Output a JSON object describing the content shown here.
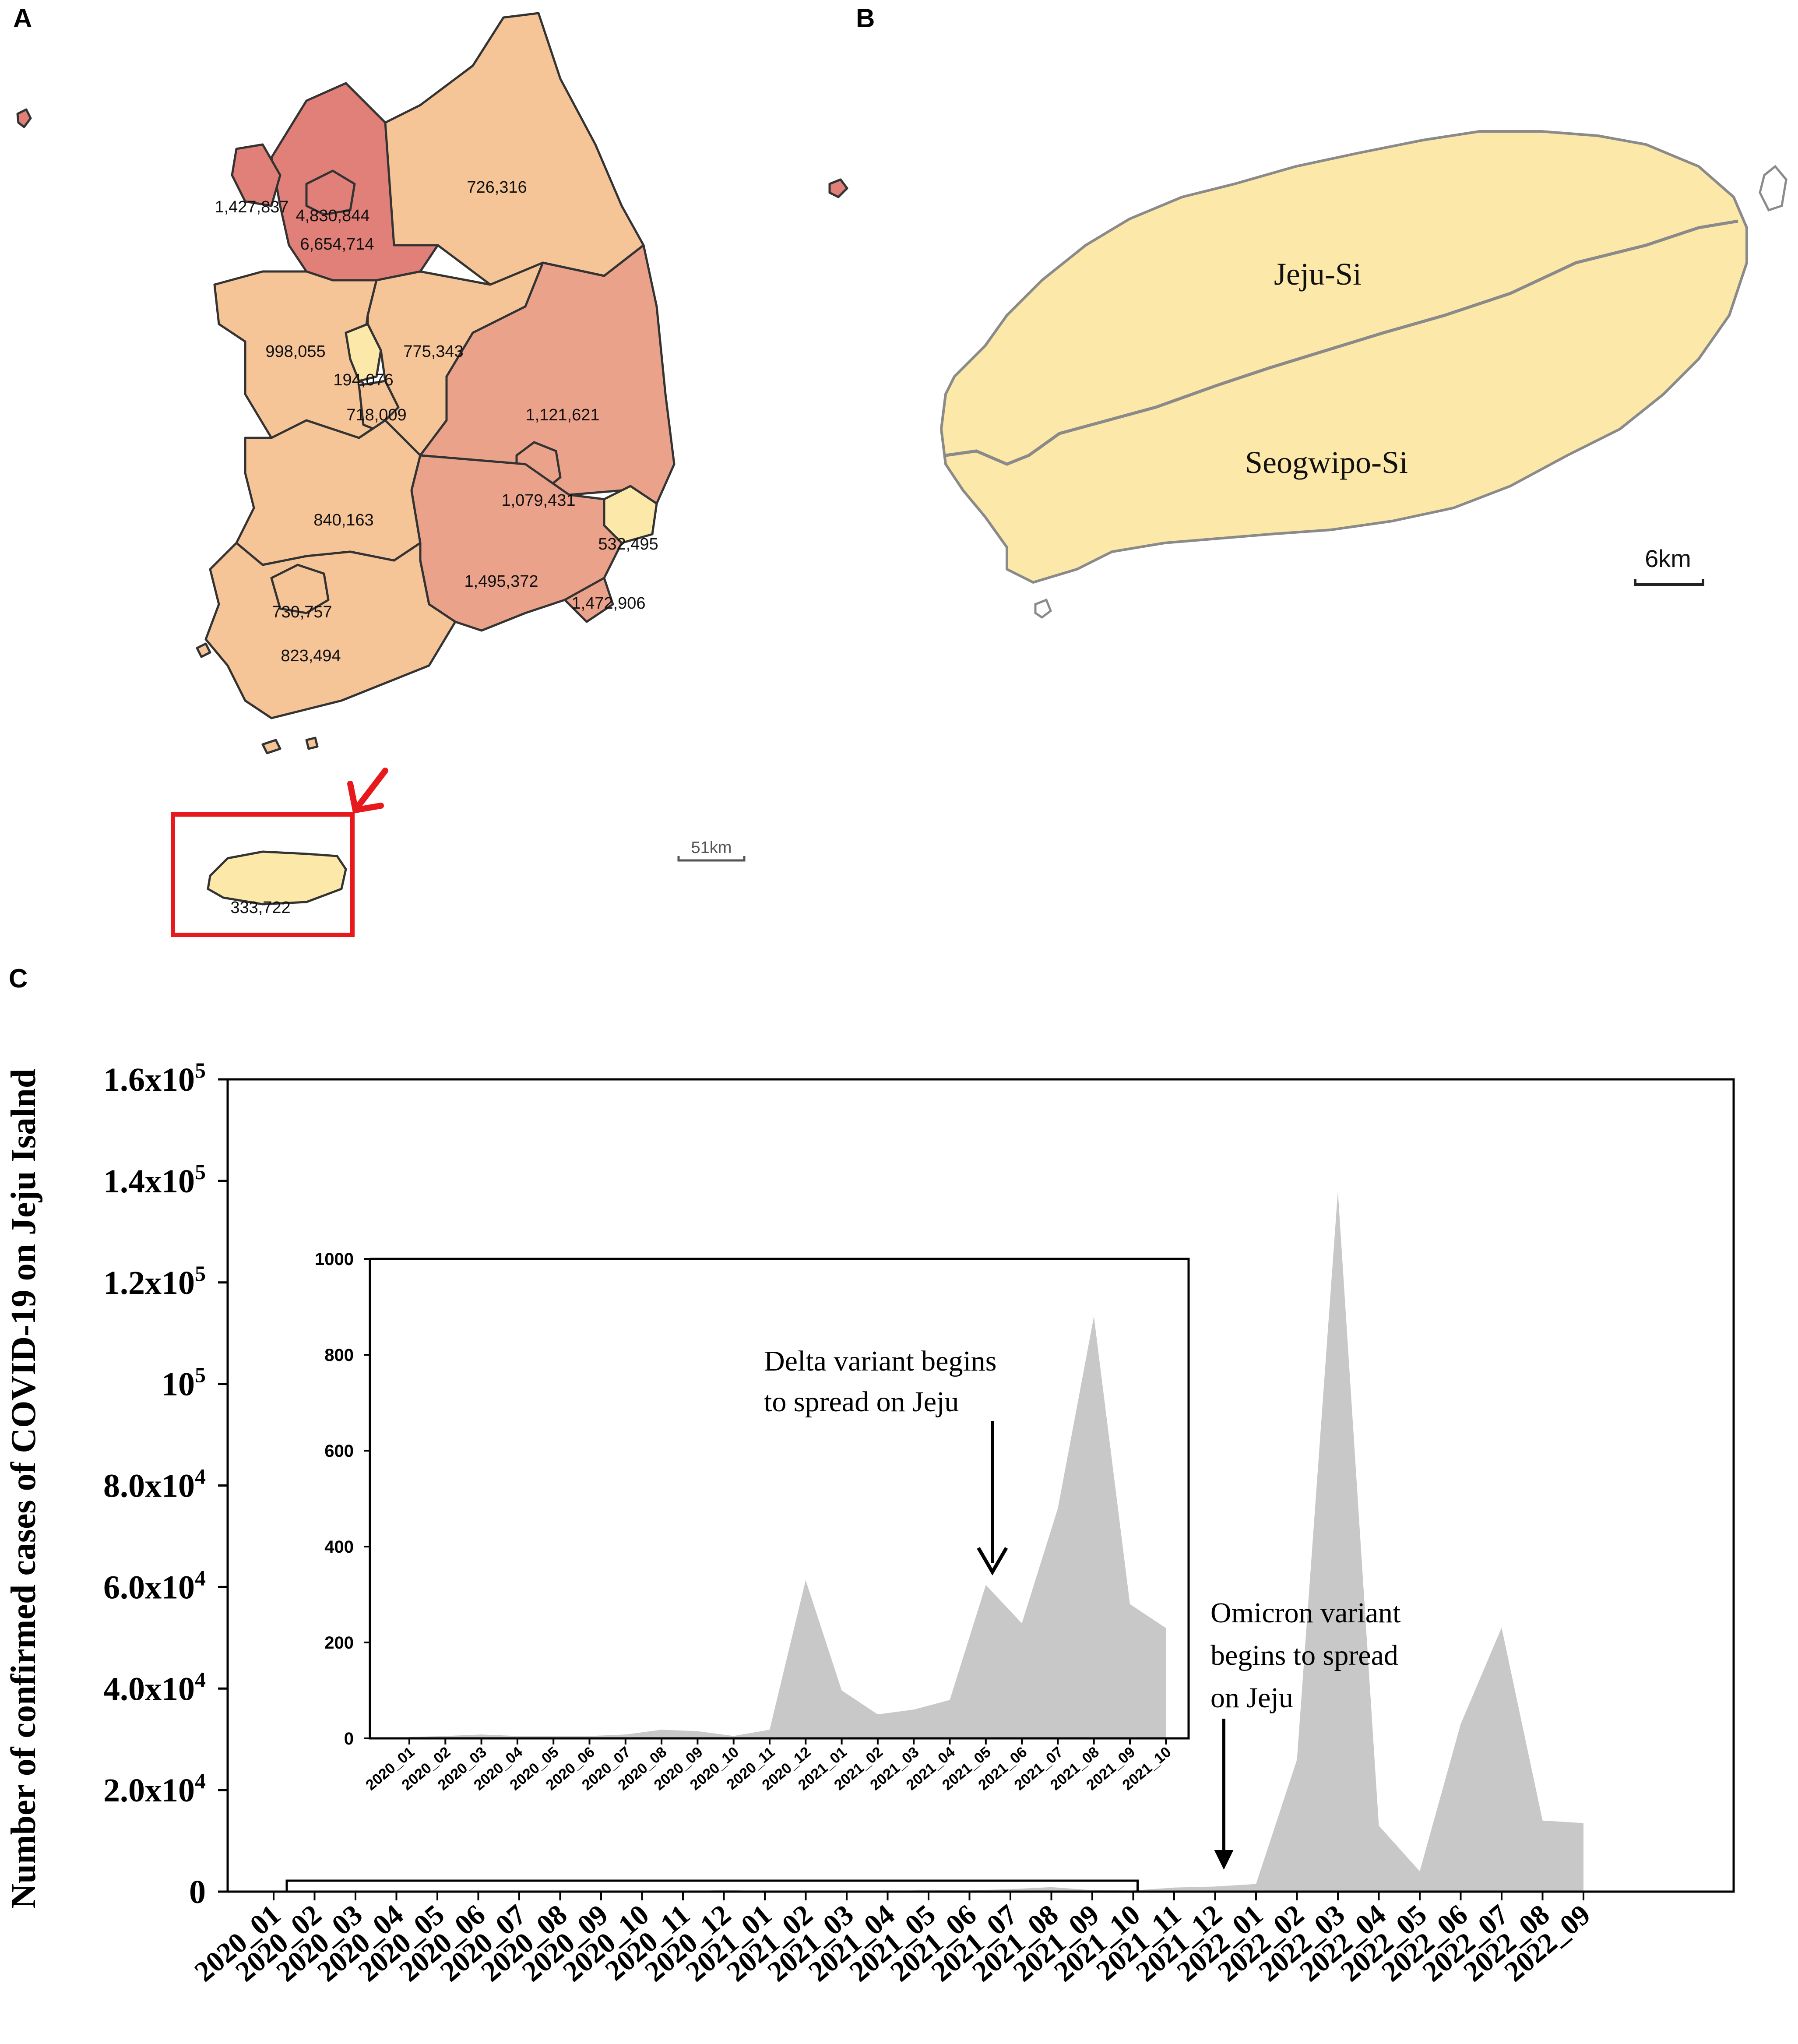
{
  "panels": {
    "a": "A",
    "b": "B",
    "c": "C"
  },
  "map_a": {
    "regions": [
      {
        "id": "gangwon",
        "value": "726,316"
      },
      {
        "id": "incheon",
        "value": "1,427,837"
      },
      {
        "id": "seoul",
        "value": "4,830,844"
      },
      {
        "id": "gyeonggi",
        "value": "6,654,714"
      },
      {
        "id": "chungnam",
        "value": "998,055"
      },
      {
        "id": "chungbuk",
        "value": "775,343"
      },
      {
        "id": "sejong",
        "value": "194,076"
      },
      {
        "id": "daejeon",
        "value": "718,009"
      },
      {
        "id": "gyeongbuk",
        "value": "1,121,621"
      },
      {
        "id": "daegu",
        "value": "1,079,431"
      },
      {
        "id": "ulsan",
        "value": "532,495"
      },
      {
        "id": "jeonbuk",
        "value": "840,163"
      },
      {
        "id": "gwangju",
        "value": "730,757"
      },
      {
        "id": "jeonnam",
        "value": "823,494"
      },
      {
        "id": "gyeongnam",
        "value": "1,495,372"
      },
      {
        "id": "busan",
        "value": "1,472,906"
      },
      {
        "id": "jeju",
        "value": "333,722"
      }
    ],
    "scale_label": "51km",
    "colors": {
      "low": "#fce8a8",
      "mid": "#f5c497",
      "high": "#eba28b",
      "highest": "#e08078",
      "highlight_box": "#e8191c",
      "outline": "#333333"
    }
  },
  "map_b": {
    "north_label": "Jeju-Si",
    "south_label": "Seogwipo-Si",
    "scale_label": "6km",
    "fill": "#fce8a8",
    "boundary": "#8a8a8a"
  },
  "chart_data": [
    {
      "type": "area",
      "id": "main",
      "ylabel": "Number of confirmed cases of COVID-19 on Jeju Isalnd",
      "yticks": [
        {
          "value": 0,
          "label": "0"
        },
        {
          "value": 20000,
          "label": "2.0x10",
          "exp": "4"
        },
        {
          "value": 40000,
          "label": "4.0x10",
          "exp": "4"
        },
        {
          "value": 60000,
          "label": "6.0x10",
          "exp": "4"
        },
        {
          "value": 80000,
          "label": "8.0x10",
          "exp": "4"
        },
        {
          "value": 100000,
          "label": "10",
          "exp": "5"
        },
        {
          "value": 120000,
          "label": "1.2x10",
          "exp": "5"
        },
        {
          "value": 140000,
          "label": "1.4x10",
          "exp": "5"
        },
        {
          "value": 160000,
          "label": "1.6x10",
          "exp": "5"
        }
      ],
      "ylim": [
        0,
        160000
      ],
      "categories": [
        "2020_01",
        "2020_02",
        "2020_03",
        "2020_04",
        "2020_05",
        "2020_06",
        "2020_07",
        "2020_08",
        "2020_09",
        "2020_10",
        "2020_11",
        "2020_12",
        "2021_01",
        "2021_02",
        "2021_03",
        "2021_04",
        "2021_05",
        "2021_06",
        "2021_07",
        "2021_08",
        "2021_09",
        "2021_10",
        "2021_11",
        "2021_12",
        "2022_01",
        "2022_02",
        "2022_03",
        "2022_04",
        "2022_05",
        "2022_06",
        "2022_07",
        "2022_08",
        "2022_09"
      ],
      "values": [
        5,
        3,
        8,
        4,
        5,
        5,
        10,
        20,
        15,
        5,
        20,
        330,
        100,
        50,
        60,
        80,
        320,
        240,
        480,
        880,
        280,
        230,
        800,
        1000,
        1500,
        26000,
        138000,
        13000,
        4000,
        33000,
        52000,
        14000,
        13500
      ],
      "bracket": {
        "from": "2020_01",
        "to": "2021_10"
      },
      "annotation": {
        "lines": [
          "Omicron variant",
          "begins to spread",
          "on Jeju"
        ],
        "target": "2021_12"
      },
      "fill": "#c8c8c8"
    },
    {
      "type": "area",
      "id": "inset",
      "yticks": [
        0,
        200,
        400,
        600,
        800,
        1000
      ],
      "ylim": [
        0,
        1000
      ],
      "categories": [
        "2020_01",
        "2020_02",
        "2020_03",
        "2020_04",
        "2020_05",
        "2020_06",
        "2020_07",
        "2020_08",
        "2020_09",
        "2020_10",
        "2020_11",
        "2020_12",
        "2021_01",
        "2021_02",
        "2021_03",
        "2021_04",
        "2021_05",
        "2021_06",
        "2021_07",
        "2021_08",
        "2021_09",
        "2021_10"
      ],
      "values": [
        3,
        5,
        8,
        5,
        5,
        5,
        8,
        18,
        15,
        5,
        18,
        330,
        100,
        50,
        60,
        80,
        320,
        240,
        480,
        880,
        280,
        230
      ],
      "annotation": {
        "lines": [
          "Delta variant begins",
          "to spread on Jeju"
        ],
        "target": "2021_05"
      },
      "fill": "#c8c8c8"
    }
  ]
}
